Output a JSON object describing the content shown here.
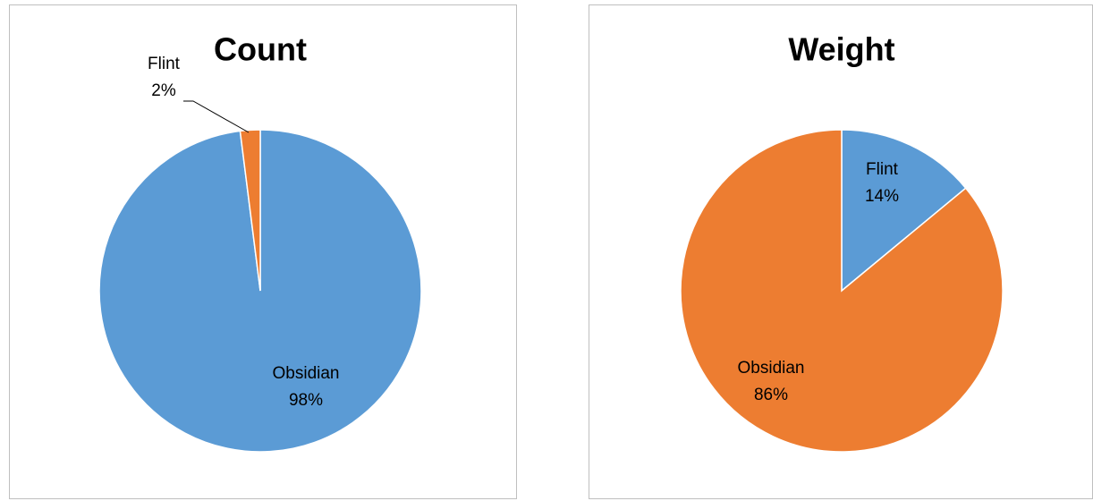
{
  "chart_data": [
    {
      "type": "pie",
      "title": "Count",
      "categories": [
        "Obsidian",
        "Flint"
      ],
      "values": [
        98,
        2
      ],
      "value_labels": [
        "98%",
        "2%"
      ],
      "colors": [
        "#5b9bd5",
        "#ed7d31"
      ]
    },
    {
      "type": "pie",
      "title": "Weight",
      "categories": [
        "Flint",
        "Obsidian"
      ],
      "values": [
        14,
        86
      ],
      "value_labels": [
        "14%",
        "86%"
      ],
      "colors": [
        "#5b9bd5",
        "#ed7d31"
      ]
    }
  ]
}
